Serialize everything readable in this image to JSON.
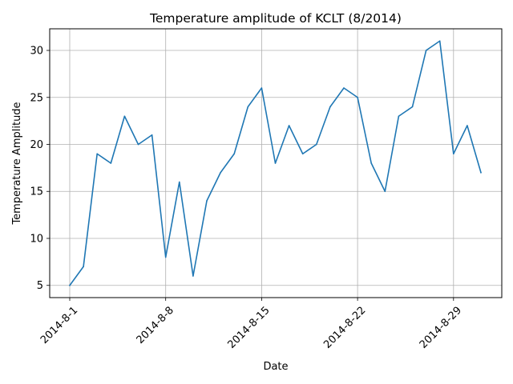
{
  "chart_data": {
    "type": "line",
    "title": "Temperature amplitude of KCLT (8/2014)",
    "xlabel": "Date",
    "ylabel": "Temperature Amplitude",
    "x": [
      "2014-8-1",
      "2014-8-2",
      "2014-8-3",
      "2014-8-4",
      "2014-8-5",
      "2014-8-6",
      "2014-8-7",
      "2014-8-8",
      "2014-8-9",
      "2014-8-10",
      "2014-8-11",
      "2014-8-12",
      "2014-8-13",
      "2014-8-14",
      "2014-8-15",
      "2014-8-16",
      "2014-8-17",
      "2014-8-18",
      "2014-8-19",
      "2014-8-20",
      "2014-8-21",
      "2014-8-22",
      "2014-8-23",
      "2014-8-24",
      "2014-8-25",
      "2014-8-26",
      "2014-8-27",
      "2014-8-28",
      "2014-8-29",
      "2014-8-30",
      "2014-8-31"
    ],
    "series": [
      {
        "values": [
          5,
          7,
          19,
          18,
          23,
          20,
          21,
          8,
          16,
          6,
          14,
          17,
          19,
          24,
          26,
          18,
          22,
          19,
          20,
          24,
          26,
          25,
          18,
          15,
          23,
          24,
          30,
          31,
          19,
          22,
          17
        ],
        "color": "#1f77b4"
      }
    ],
    "xticks": [
      "2014-8-1",
      "2014-8-8",
      "2014-8-15",
      "2014-8-22",
      "2014-8-29"
    ],
    "yticks": [
      5,
      10,
      15,
      20,
      25,
      30
    ],
    "ylim": [
      3.7,
      32.3
    ],
    "grid": true
  }
}
